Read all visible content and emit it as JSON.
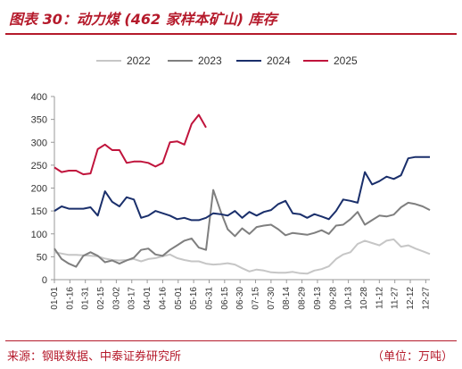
{
  "header": {
    "title": "图表 30：动力煤 (462 家样本矿山) 库存"
  },
  "footer": {
    "source": "来源：钢联数据、中泰证券研究所",
    "unit": "（单位：万吨）"
  },
  "chart_data": {
    "type": "line",
    "title": "",
    "xlabel": "",
    "ylabel": "",
    "ylim": [
      0,
      400
    ],
    "yticks": [
      0,
      50,
      100,
      150,
      200,
      250,
      300,
      350,
      400
    ],
    "grid": false,
    "legend_position": "top",
    "x_tick_labels": [
      "01-01",
      "01-16",
      "01-31",
      "02-15",
      "03-02",
      "03-17",
      "04-01",
      "04-16",
      "05-01",
      "05-16",
      "05-31",
      "06-15",
      "06-30",
      "07-15",
      "07-30",
      "08-14",
      "08-29",
      "09-13",
      "09-28",
      "10-13",
      "10-28",
      "11-12",
      "11-27",
      "12-12",
      "12-27"
    ],
    "series": [
      {
        "name": "2022",
        "color": "#c6c6c6",
        "x": [
          "01-01",
          "01-08",
          "01-15",
          "01-22",
          "01-29",
          "02-05",
          "02-12",
          "02-19",
          "02-26",
          "03-05",
          "03-12",
          "03-19",
          "03-26",
          "04-02",
          "04-09",
          "04-16",
          "04-23",
          "04-30",
          "05-07",
          "05-14",
          "05-21",
          "05-28",
          "06-04",
          "06-11",
          "06-18",
          "06-25",
          "07-02",
          "07-09",
          "07-16",
          "07-23",
          "07-30",
          "08-06",
          "08-13",
          "08-20",
          "08-27",
          "09-03",
          "09-10",
          "09-17",
          "09-24",
          "10-01",
          "10-08",
          "10-15",
          "10-22",
          "10-29",
          "11-05",
          "11-12",
          "11-19",
          "11-26",
          "12-03",
          "12-10",
          "12-17",
          "12-24",
          "12-31"
        ],
        "y": [
          60,
          57,
          54,
          54,
          53,
          52,
          51,
          46,
          43,
          42,
          43,
          45,
          40,
          45,
          47,
          51,
          55,
          47,
          43,
          40,
          40,
          35,
          33,
          34,
          36,
          33,
          25,
          18,
          22,
          20,
          16,
          15,
          15,
          17,
          14,
          13,
          20,
          23,
          29,
          45,
          55,
          60,
          78,
          85,
          80,
          75,
          85,
          88,
          72,
          75,
          68,
          62,
          56
        ]
      },
      {
        "name": "2023",
        "color": "#7f7f7f",
        "x": [
          "01-01",
          "01-08",
          "01-15",
          "01-22",
          "01-29",
          "02-05",
          "02-12",
          "02-19",
          "02-26",
          "03-05",
          "03-12",
          "03-19",
          "03-26",
          "04-02",
          "04-09",
          "04-16",
          "04-23",
          "04-30",
          "05-07",
          "05-14",
          "05-21",
          "05-28",
          "06-04",
          "06-11",
          "06-18",
          "06-25",
          "07-02",
          "07-09",
          "07-16",
          "07-23",
          "07-30",
          "08-06",
          "08-13",
          "08-20",
          "08-27",
          "09-03",
          "09-10",
          "09-17",
          "09-24",
          "10-01",
          "10-08",
          "10-15",
          "10-22",
          "10-29",
          "11-05",
          "11-12",
          "11-19",
          "11-26",
          "12-03",
          "12-10",
          "12-17",
          "12-24",
          "12-31"
        ],
        "y": [
          68,
          45,
          35,
          28,
          52,
          60,
          52,
          38,
          42,
          35,
          42,
          48,
          65,
          68,
          55,
          52,
          65,
          75,
          85,
          90,
          70,
          65,
          196,
          150,
          110,
          95,
          112,
          100,
          115,
          118,
          120,
          110,
          97,
          102,
          100,
          98,
          102,
          108,
          100,
          118,
          120,
          132,
          148,
          120,
          130,
          140,
          138,
          142,
          158,
          168,
          165,
          160,
          152
        ]
      },
      {
        "name": "2024",
        "color": "#1a2f6b",
        "x": [
          "01-01",
          "01-08",
          "01-15",
          "01-22",
          "01-29",
          "02-05",
          "02-12",
          "02-19",
          "02-26",
          "03-05",
          "03-12",
          "03-19",
          "03-26",
          "04-02",
          "04-09",
          "04-16",
          "04-23",
          "04-30",
          "05-07",
          "05-14",
          "05-21",
          "05-28",
          "06-04",
          "06-11",
          "06-18",
          "06-25",
          "07-02",
          "07-09",
          "07-16",
          "07-23",
          "07-30",
          "08-06",
          "08-13",
          "08-20",
          "08-27",
          "09-03",
          "09-10",
          "09-17",
          "09-24",
          "10-01",
          "10-08",
          "10-15",
          "10-22",
          "10-29",
          "11-05",
          "11-12",
          "11-19",
          "11-26",
          "12-03",
          "12-10",
          "12-17",
          "12-24",
          "12-31"
        ],
        "y": [
          150,
          160,
          155,
          155,
          155,
          158,
          140,
          193,
          170,
          160,
          180,
          175,
          135,
          140,
          150,
          145,
          140,
          132,
          135,
          130,
          130,
          135,
          145,
          143,
          140,
          150,
          135,
          148,
          140,
          148,
          152,
          165,
          172,
          145,
          143,
          135,
          143,
          138,
          132,
          150,
          175,
          172,
          168,
          235,
          208,
          215,
          225,
          220,
          228,
          265,
          268,
          268,
          268
        ]
      },
      {
        "name": "2025",
        "color": "#c0143c",
        "x": [
          "01-01",
          "01-08",
          "01-15",
          "01-22",
          "01-29",
          "02-05",
          "02-12",
          "02-19",
          "02-26",
          "03-05",
          "03-12",
          "03-19",
          "03-26",
          "04-02",
          "04-09",
          "04-16",
          "04-23",
          "04-30",
          "05-07",
          "05-14",
          "05-21",
          "05-28"
        ],
        "y": [
          245,
          235,
          238,
          238,
          230,
          232,
          285,
          295,
          283,
          283,
          255,
          258,
          258,
          255,
          247,
          255,
          300,
          302,
          295,
          340,
          360,
          332
        ]
      }
    ]
  }
}
